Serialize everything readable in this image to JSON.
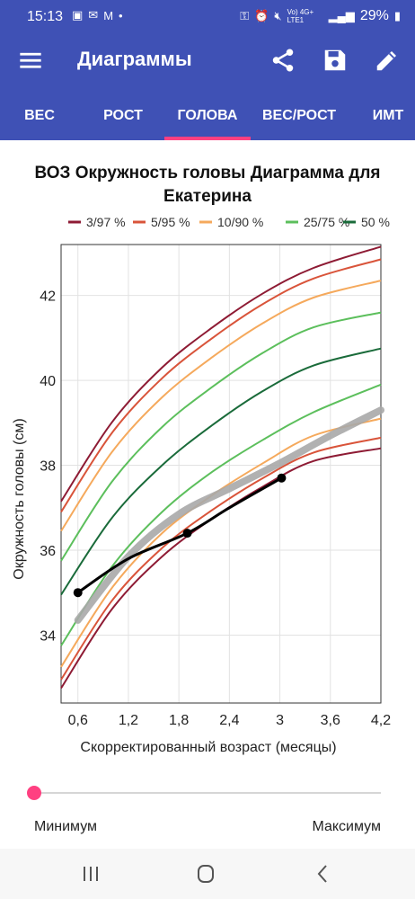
{
  "status_bar": {
    "time": "15:13",
    "network": "Vo) 4G+ LTE1",
    "battery": "29%"
  },
  "app_bar": {
    "title": "Диаграммы",
    "icons": [
      "menu-icon",
      "share-icon",
      "save-icon",
      "edit-icon"
    ]
  },
  "tabs": [
    {
      "label": "ВЕС",
      "active": false
    },
    {
      "label": "РОСТ",
      "active": false
    },
    {
      "label": "ГОЛОВА",
      "active": true
    },
    {
      "label": "ВЕС/РОСТ",
      "active": false
    },
    {
      "label": "ИМТ",
      "active": false
    }
  ],
  "slider": {
    "min_label": "Минимум",
    "max_label": "Максимум",
    "value": 0
  },
  "colors": {
    "c3": "#8e1b34",
    "c5": "#d9543a",
    "c10": "#f5a95c",
    "c25": "#5cbf5c",
    "c50": "#1a6b3a",
    "child": "#000000",
    "reference": "#a8a8a8",
    "accent": "#ff4081",
    "primary": "#3f51b5"
  },
  "chart_data": {
    "type": "line",
    "title": "ВОЗ Окружность головы Диаграмма для Екатерина",
    "xlabel": "Скорректированный возраст (месяцы)",
    "ylabel": "Окружность головы (см)",
    "xlim": [
      0.4,
      4.2
    ],
    "ylim": [
      32.4,
      43.2
    ],
    "x_ticks": [
      0.6,
      1.2,
      1.8,
      2.4,
      3,
      3.6,
      4.2
    ],
    "x_tick_labels": [
      "0,6",
      "1,2",
      "1,8",
      "2,4",
      "3",
      "3,6",
      "4,2"
    ],
    "y_ticks": [
      34,
      36,
      38,
      40,
      42
    ],
    "grid": true,
    "legend": {
      "placement": "top",
      "entries": [
        {
          "label": "3/97 %",
          "color": "#8e1b34"
        },
        {
          "label": "5/95 %",
          "color": "#d9543a"
        },
        {
          "label": "10/90 %",
          "color": "#f5a95c"
        },
        {
          "label": "25/75 %",
          "color": "#5cbf5c"
        },
        {
          "label": "50 %",
          "color": "#1a6b3a"
        }
      ]
    },
    "x": [
      0.4,
      1.0,
      1.6,
      2.2,
      2.8,
      3.4,
      4.2
    ],
    "series": [
      {
        "name": "3/97 %",
        "color": "#8e1b34",
        "values": [
          32.75,
          34.6,
          35.85,
          36.75,
          37.5,
          38.1,
          38.4
        ]
      },
      {
        "name": "5/95 %",
        "color": "#d9543a",
        "values": [
          32.95,
          34.8,
          36.05,
          36.95,
          37.7,
          38.3,
          38.65
        ]
      },
      {
        "name": "10/90 %",
        "color": "#f5a95c",
        "values": [
          33.25,
          35.1,
          36.4,
          37.3,
          38.05,
          38.7,
          39.1
        ]
      },
      {
        "name": "25/75 %",
        "color": "#5cbf5c",
        "values": [
          33.75,
          35.6,
          36.9,
          37.85,
          38.6,
          39.25,
          39.9
        ]
      },
      {
        "name": "50 %",
        "color": "#1a6b3a",
        "values": [
          34.95,
          36.75,
          38.0,
          38.95,
          39.75,
          40.35,
          40.75
        ]
      },
      {
        "name": "25/75 %",
        "color": "#5cbf5c",
        "values": [
          35.75,
          37.6,
          38.9,
          39.85,
          40.65,
          41.25,
          41.6
        ]
      },
      {
        "name": "10/90 %",
        "color": "#f5a95c",
        "values": [
          36.45,
          38.3,
          39.6,
          40.55,
          41.35,
          41.95,
          42.35
        ]
      },
      {
        "name": "5/95 %",
        "color": "#d9543a",
        "values": [
          36.9,
          38.75,
          40.05,
          41.0,
          41.8,
          42.4,
          42.85
        ]
      },
      {
        "name": "3/97 %",
        "color": "#8e1b34",
        "values": [
          37.15,
          39.0,
          40.3,
          41.25,
          42.05,
          42.65,
          43.15
        ]
      }
    ],
    "reference_curve": {
      "color": "#a8a8a8",
      "x": [
        0.6,
        1.2,
        1.8,
        2.4,
        3.0,
        3.6,
        4.2
      ],
      "values": [
        34.35,
        35.85,
        36.85,
        37.45,
        38.05,
        38.7,
        39.3
      ]
    },
    "child_series": {
      "color": "#000000",
      "x": [
        0.6,
        1.2,
        1.9,
        2.4,
        3.02
      ],
      "values": [
        35.0,
        35.8,
        36.4,
        37.0,
        37.7
      ],
      "points": [
        0,
        2,
        4
      ]
    }
  }
}
